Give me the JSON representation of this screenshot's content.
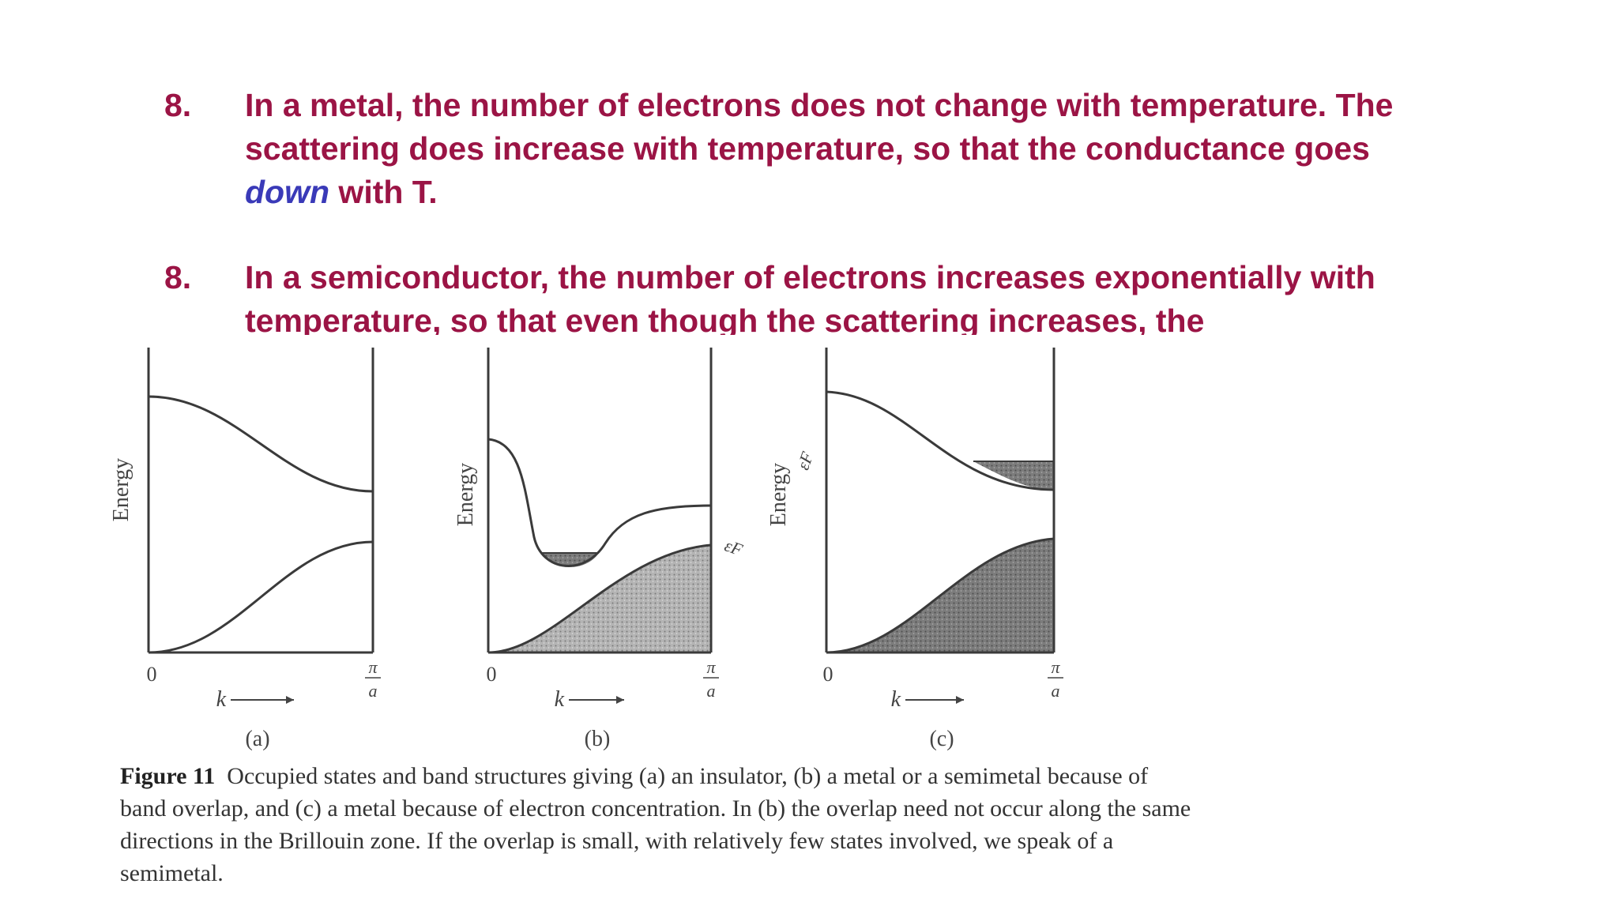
{
  "bullets": [
    {
      "number": "8.",
      "text_before": "In a metal, the number of electrons does not change with temperature.  The scattering does increase with temperature, so that the conductance goes ",
      "emphasis": "down",
      "text_after": " with T."
    },
    {
      "number": "8.",
      "text": "In a semiconductor, the number of electrons increases exponentially with temperature, so that even though the scattering increases, the"
    }
  ],
  "figure": {
    "panels": [
      {
        "label": "(a)",
        "ylabel": "Energy",
        "xlabel": "k",
        "x_start": "0",
        "x_end_num": "π",
        "x_end_den": "a",
        "fermi": ""
      },
      {
        "label": "(b)",
        "ylabel": "Energy",
        "xlabel": "k",
        "x_start": "0",
        "x_end_num": "π",
        "x_end_den": "a",
        "fermi": "εF"
      },
      {
        "label": "(c)",
        "ylabel": "Energy",
        "xlabel": "k",
        "x_start": "0",
        "x_end_num": "π",
        "x_end_den": "a",
        "fermi": "εF"
      }
    ],
    "caption_label": "Figure 11",
    "caption_text": "Occupied states and band structures giving (a) an insulator, (b) a metal or a semimetal because of band overlap, and (c) a metal because of electron concentration. In (b) the overlap need not occur along the same directions in the Brillouin zone. If the overlap is small, with relatively few states involved, we speak of a semimetal."
  },
  "colors": {
    "bullet_text": "#9b1445",
    "emphasis": "#3a3ab8",
    "figure_ink": "#3a3a3a",
    "shading": "#9a9a9a"
  }
}
